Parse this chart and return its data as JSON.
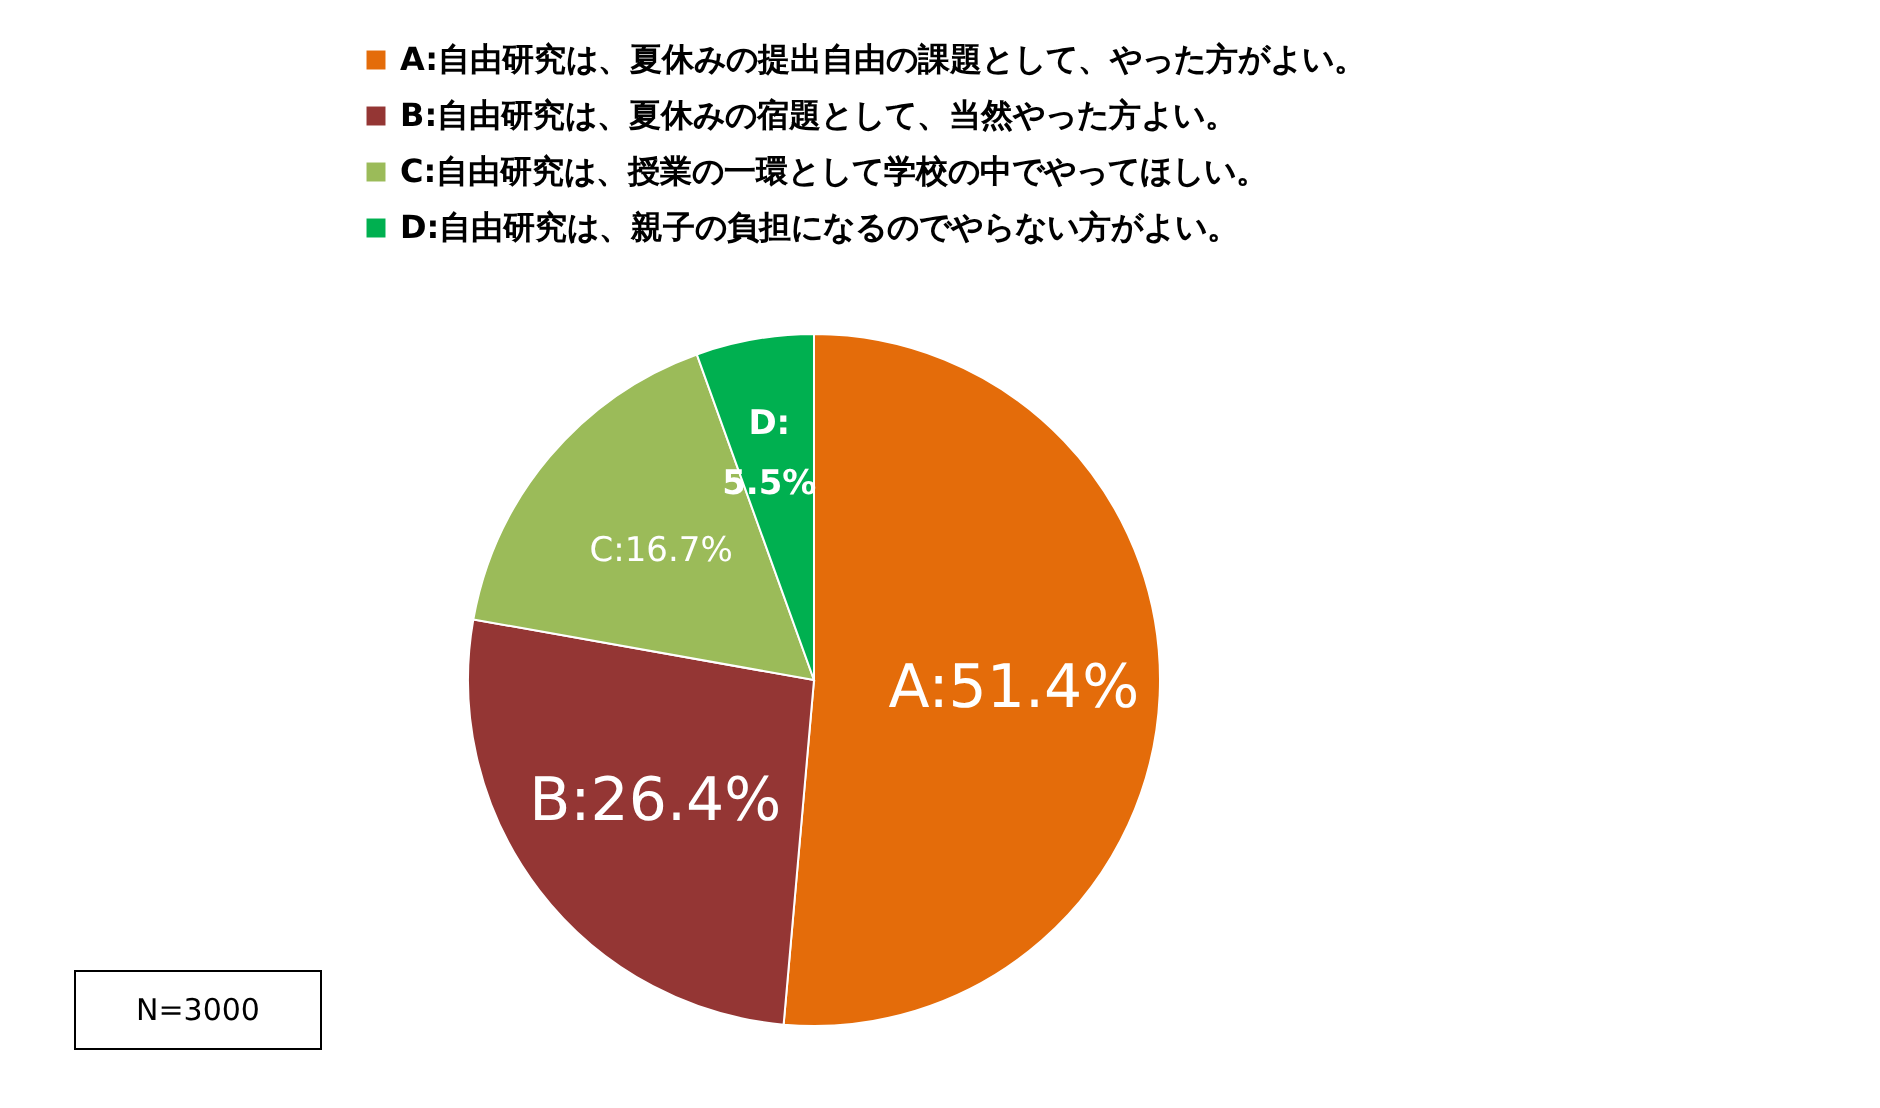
{
  "chart_data": {
    "type": "pie",
    "categories": [
      "A:自由研究は、夏休みの提出自由の課題として、やった方がよい。",
      "B:自由研究は、夏休みの宿題として、当然やった方よい。",
      "C:自由研究は、授業の一環として学校の中でやってほしい。",
      "D:自由研究は、親子の負担になるのでやらない方がよい。"
    ],
    "values": [
      51.4,
      26.4,
      16.7,
      5.5
    ],
    "colors": [
      "#e46c0a",
      "#943634",
      "#9bbb59",
      "#00b050"
    ],
    "value_labels": [
      "A:51.4%",
      "B:26.4%",
      "C:16.7%",
      "D:5.5%"
    ],
    "legend": "top",
    "annotations": [
      "N=3000"
    ]
  }
}
